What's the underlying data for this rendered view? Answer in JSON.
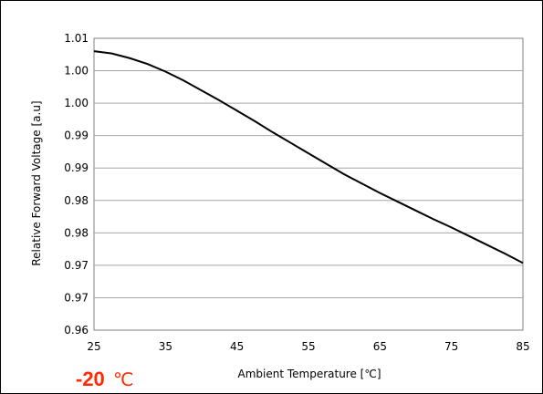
{
  "chart_data": {
    "type": "line",
    "title": "",
    "xlabel": "Ambient Temperature [℃]",
    "ylabel": "Relative Forward Voltage [a.u]",
    "xlim": [
      25,
      85
    ],
    "ylim": [
      0.96,
      1.01
    ],
    "x_ticks": [
      "25",
      "35",
      "45",
      "55",
      "65",
      "75",
      "85"
    ],
    "y_tick_labels": [
      "1.01",
      "1.00",
      "1.00",
      "0.99",
      "0.99",
      "0.98",
      "0.98",
      "0.97",
      "0.97",
      "0.96"
    ],
    "grid": true,
    "legend": "none",
    "line_color": "#000000",
    "series": [
      {
        "x": [
          25,
          27.5,
          30,
          32.5,
          35,
          37.5,
          40,
          42.5,
          45,
          47.5,
          50,
          52.5,
          55,
          57.5,
          60,
          62.5,
          65,
          67.5,
          70,
          72.5,
          75,
          77.5,
          80,
          82.5,
          85
        ],
        "values": [
          1.0078,
          1.0074,
          1.0066,
          1.0056,
          1.0043,
          1.0028,
          1.0011,
          0.9994,
          0.9976,
          0.9958,
          0.9939,
          0.9921,
          0.9903,
          0.9885,
          0.9867,
          0.9851,
          0.9835,
          0.982,
          0.9805,
          0.979,
          0.9776,
          0.9761,
          0.9746,
          0.9731,
          0.9715
        ]
      }
    ]
  },
  "annotation": {
    "condition": "-20",
    "unit": "℃"
  }
}
